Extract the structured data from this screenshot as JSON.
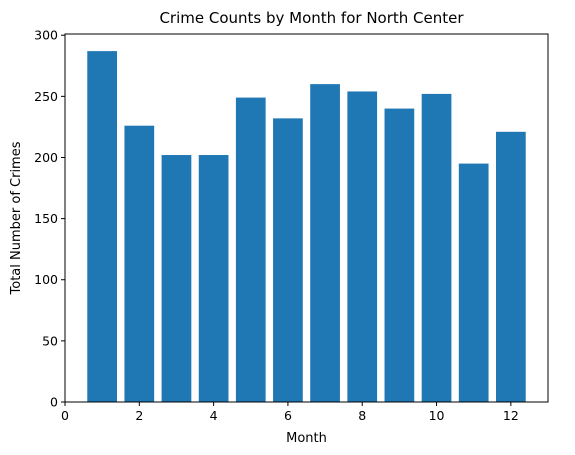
{
  "chart_data": {
    "type": "bar",
    "title": "Crime Counts by Month for North Center",
    "xlabel": "Month",
    "ylabel": "Total Number of Crimes",
    "x": [
      1,
      2,
      3,
      4,
      5,
      6,
      7,
      8,
      9,
      10,
      11,
      12
    ],
    "values": [
      287,
      226,
      202,
      202,
      249,
      232,
      260,
      254,
      240,
      252,
      195,
      221
    ],
    "xlim": [
      0,
      13
    ],
    "ylim": [
      0,
      301
    ],
    "xticks": [
      "0",
      "2",
      "4",
      "6",
      "8",
      "10",
      "12"
    ],
    "yticks": [
      "0",
      "50",
      "100",
      "150",
      "200",
      "250",
      "300"
    ],
    "bar_color": "#1f77b4",
    "grid": false,
    "legend": null
  }
}
